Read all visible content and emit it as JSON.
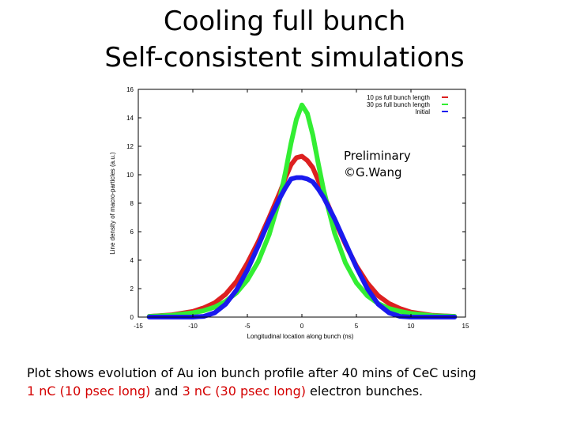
{
  "slide": {
    "title_line1": "Cooling full bunch",
    "title_line2": "Self-consistent simulations",
    "watermark_line1": "Preliminary",
    "watermark_line2": "©G.Wang",
    "caption": {
      "line1": "Plot shows evolution of Au ion bunch profile after 40 mins of CeC using",
      "part1": "1 nC (10 psec long)",
      "part2": " and ",
      "part3": "3 nC (30 psec long)",
      "part4": " electron bunches."
    }
  },
  "chart_data": {
    "type": "line",
    "title": "",
    "xlabel": "Longitudinal location along bunch (ns)",
    "ylabel": "Line density of macro-particles (a.u.)",
    "xlim": [
      -15,
      15
    ],
    "ylim": [
      0,
      16
    ],
    "xticks": [
      -15,
      -10,
      -5,
      0,
      5,
      10,
      15
    ],
    "yticks": [
      0,
      2,
      4,
      6,
      8,
      10,
      12,
      14,
      16
    ],
    "grid": false,
    "legend_position": "top-right",
    "x": [
      -14,
      -12,
      -10,
      -9,
      -8,
      -7,
      -6,
      -5,
      -4,
      -3,
      -2,
      -1.5,
      -1,
      -0.5,
      0,
      0.5,
      1,
      1.5,
      2,
      3,
      4,
      5,
      6,
      7,
      8,
      9,
      10,
      12,
      14
    ],
    "series": [
      {
        "name": "10 ps full bunch length",
        "color": "#dd2020",
        "values": [
          0.05,
          0.15,
          0.4,
          0.65,
          1.0,
          1.6,
          2.5,
          3.8,
          5.3,
          7.0,
          8.8,
          9.8,
          10.7,
          11.2,
          11.3,
          11.0,
          10.5,
          9.6,
          8.6,
          6.8,
          5.1,
          3.6,
          2.4,
          1.5,
          0.95,
          0.6,
          0.35,
          0.12,
          0.05
        ]
      },
      {
        "name": "30 ps full bunch length",
        "color": "#33ee33",
        "values": [
          0.05,
          0.12,
          0.3,
          0.45,
          0.7,
          1.1,
          1.7,
          2.6,
          3.9,
          5.8,
          8.4,
          10.2,
          12.2,
          13.9,
          14.9,
          14.3,
          12.8,
          10.8,
          8.9,
          5.9,
          3.8,
          2.4,
          1.5,
          0.95,
          0.6,
          0.4,
          0.25,
          0.1,
          0.05
        ]
      },
      {
        "name": "Initial",
        "color": "#1a1aee",
        "values": [
          0,
          0,
          0,
          0.05,
          0.3,
          0.9,
          1.9,
          3.3,
          5.0,
          6.8,
          8.4,
          9.1,
          9.7,
          9.8,
          9.8,
          9.7,
          9.5,
          9.0,
          8.4,
          6.9,
          5.2,
          3.5,
          2.0,
          0.9,
          0.3,
          0.05,
          0,
          0,
          0
        ]
      }
    ]
  }
}
